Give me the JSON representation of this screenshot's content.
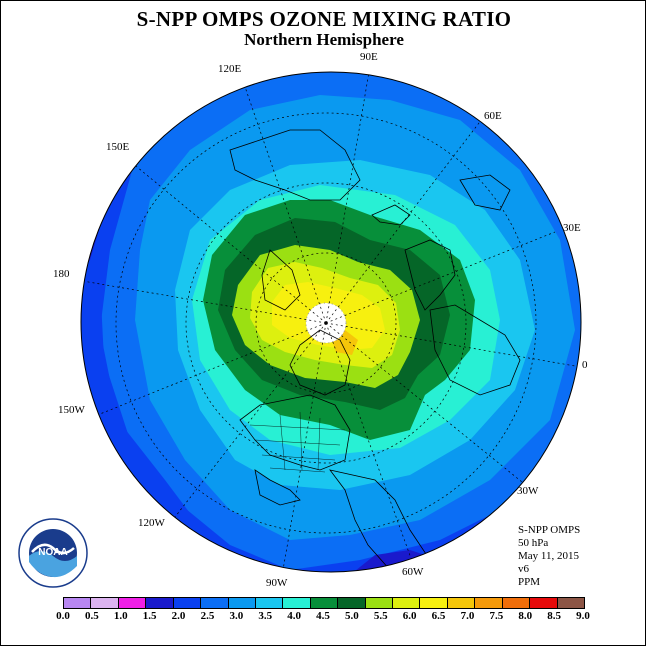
{
  "title": "S-NPP OMPS OZONE MIXING RATIO",
  "subtitle": "Northern Hemisphere",
  "longitude_labels": {
    "lon_90e": "90E",
    "lon_120e": "120E",
    "lon_60e": "60E",
    "lon_150e": "150E",
    "lon_30e": "30E",
    "lon_180": "180",
    "lon_0": "0",
    "lon_150w": "150W",
    "lon_30w": "30W",
    "lon_120w": "120W",
    "lon_60w": "60W",
    "lon_90w": "90W"
  },
  "info": {
    "instrument": "S-NPP OMPS",
    "level": "50 hPa",
    "date": "May 11, 2015",
    "version": "v6",
    "units": "PPM"
  },
  "logo": {
    "text": "NOAA",
    "ring_text": "NATIONAL OCEANIC AND ATMOSPHERIC ADMINISTRATION · U.S. DEPARTMENT OF COMMERCE"
  },
  "colorbar": {
    "colors": [
      "#b887f2",
      "#dcb3f0",
      "#f01fe6",
      "#1a1acc",
      "#0a40f0",
      "#0b6ef5",
      "#0a99f0",
      "#1ac6f0",
      "#28f0d4",
      "#078f3a",
      "#056628",
      "#9be012",
      "#ddf00f",
      "#f7f00f",
      "#f5c60a",
      "#f59a0a",
      "#f06e0a",
      "#e60a0a",
      "#8c5545"
    ],
    "ticks": [
      "0.0",
      "0.5",
      "1.0",
      "1.5",
      "2.0",
      "2.5",
      "3.0",
      "3.5",
      "4.0",
      "4.5",
      "5.0",
      "5.5",
      "6.0",
      "6.5",
      "7.0",
      "7.5",
      "8.0",
      "8.5",
      "9.0"
    ]
  },
  "contour_colors": {
    "c2_0": "#0a40f0",
    "c2_5": "#0b6ef5",
    "c3_0": "#0a99f0",
    "c3_5": "#1ac6f0",
    "c4_0": "#28f0d4",
    "c4_5": "#078f3a",
    "c5_0": "#056628",
    "c5_5": "#9be012",
    "c6_0": "#ddf00f",
    "c6_5": "#f7f00f",
    "c7_0": "#f5c60a",
    "pole": "#ffffff"
  }
}
